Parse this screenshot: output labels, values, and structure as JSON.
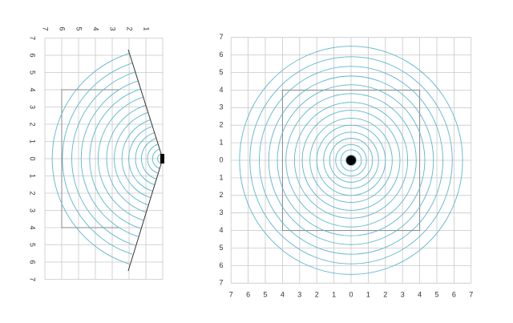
{
  "left_diagram": {
    "x_labels": [
      "7",
      "6",
      "5",
      "4",
      "3",
      "2",
      "1"
    ],
    "y_labels": [
      "7",
      "6",
      "5",
      "4",
      "3",
      "2",
      "1",
      "0",
      "1",
      "2",
      "3",
      "4",
      "5",
      "6",
      "7"
    ]
  },
  "right_diagram": {
    "x_labels": [
      "7",
      "6",
      "5",
      "4",
      "3",
      "2",
      "1",
      "0",
      "1",
      "2",
      "3",
      "4",
      "5",
      "6",
      "7"
    ],
    "y_labels": [
      "7",
      "6",
      "5",
      "4",
      "3",
      "2",
      "1",
      "0",
      "1",
      "2",
      "3",
      "4",
      "5",
      "6",
      "7"
    ]
  }
}
